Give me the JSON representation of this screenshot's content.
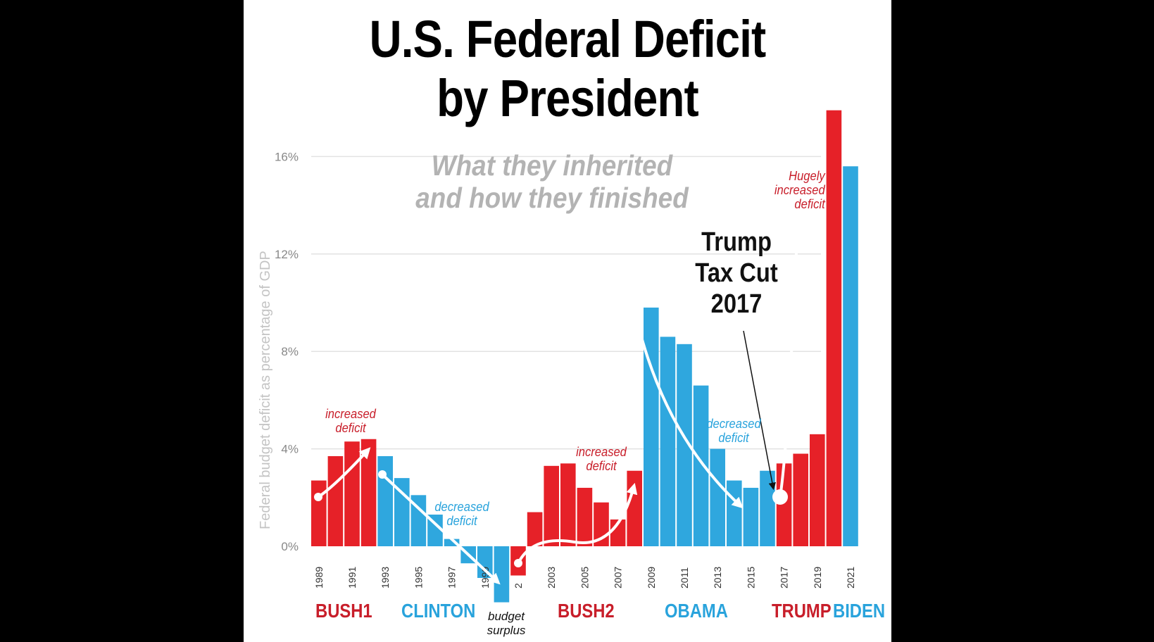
{
  "colors": {
    "red": "#e62128",
    "blue": "#2fa7de",
    "background": "#000000",
    "panel": "#ffffff"
  },
  "chart_data": {
    "type": "bar",
    "title_line1": "U.S. Federal Deficit",
    "title_line2": "by President",
    "subtitle_line1": "What they inherited",
    "subtitle_line2": "and how they finished",
    "ylabel": "Federal budget deficit as percentage of GDP",
    "ylim": [
      -1.5,
      18
    ],
    "yticks": [
      "0%",
      "4%",
      "8%",
      "12%",
      "16%"
    ],
    "ytick_values": [
      0,
      4,
      8,
      12,
      16
    ],
    "grid": true,
    "x": [
      1989,
      1990,
      1991,
      1992,
      1993,
      1994,
      1995,
      1996,
      1997,
      1998,
      1999,
      2000,
      2001,
      2002,
      2003,
      2004,
      2005,
      2006,
      2007,
      2008,
      2009,
      2010,
      2011,
      2012,
      2013,
      2014,
      2015,
      2016,
      2017,
      2018,
      2019,
      2020,
      2021
    ],
    "x_tick_labels": [
      "1989",
      "1991",
      "1993",
      "1995",
      "1997",
      "1999",
      "2",
      "2003",
      "2005",
      "2007",
      "2009",
      "2011",
      "2013",
      "2015",
      "2017",
      "2019",
      "2021"
    ],
    "values": [
      2.7,
      3.7,
      4.3,
      4.4,
      3.7,
      2.8,
      2.1,
      1.3,
      0.3,
      -0.7,
      -1.3,
      -2.3,
      -1.2,
      1.4,
      3.3,
      3.4,
      2.4,
      1.8,
      1.1,
      3.1,
      9.8,
      8.6,
      8.3,
      6.6,
      4.0,
      2.7,
      2.4,
      3.1,
      3.4,
      3.8,
      4.6,
      17.9,
      15.6
    ],
    "bar_colors": [
      "red",
      "red",
      "red",
      "red",
      "blue",
      "blue",
      "blue",
      "blue",
      "blue",
      "blue",
      "blue",
      "blue",
      "red",
      "red",
      "red",
      "red",
      "red",
      "red",
      "red",
      "red",
      "blue",
      "blue",
      "blue",
      "blue",
      "blue",
      "blue",
      "blue",
      "blue",
      "red",
      "red",
      "red",
      "red",
      "blue"
    ],
    "presidents": [
      {
        "name": "BUSH1",
        "color": "red"
      },
      {
        "name": "CLINTON",
        "color": "blue"
      },
      {
        "name": "BUSH2",
        "color": "red"
      },
      {
        "name": "OBAMA",
        "color": "blue"
      },
      {
        "name": "TRUMP",
        "color": "red"
      },
      {
        "name": "BIDEN",
        "color": "blue"
      }
    ],
    "annotations": {
      "bush1": [
        "increased",
        "deficit"
      ],
      "clinton": [
        "decreased",
        "deficit"
      ],
      "bush2": [
        "increased",
        "deficit"
      ],
      "obama": [
        "decreased",
        "deficit"
      ],
      "trump": [
        "Hugely",
        "increased",
        "deficit"
      ],
      "tax_cut": [
        "Trump",
        "Tax Cut",
        "2017"
      ],
      "surplus": [
        "budget",
        "surplus"
      ]
    }
  }
}
